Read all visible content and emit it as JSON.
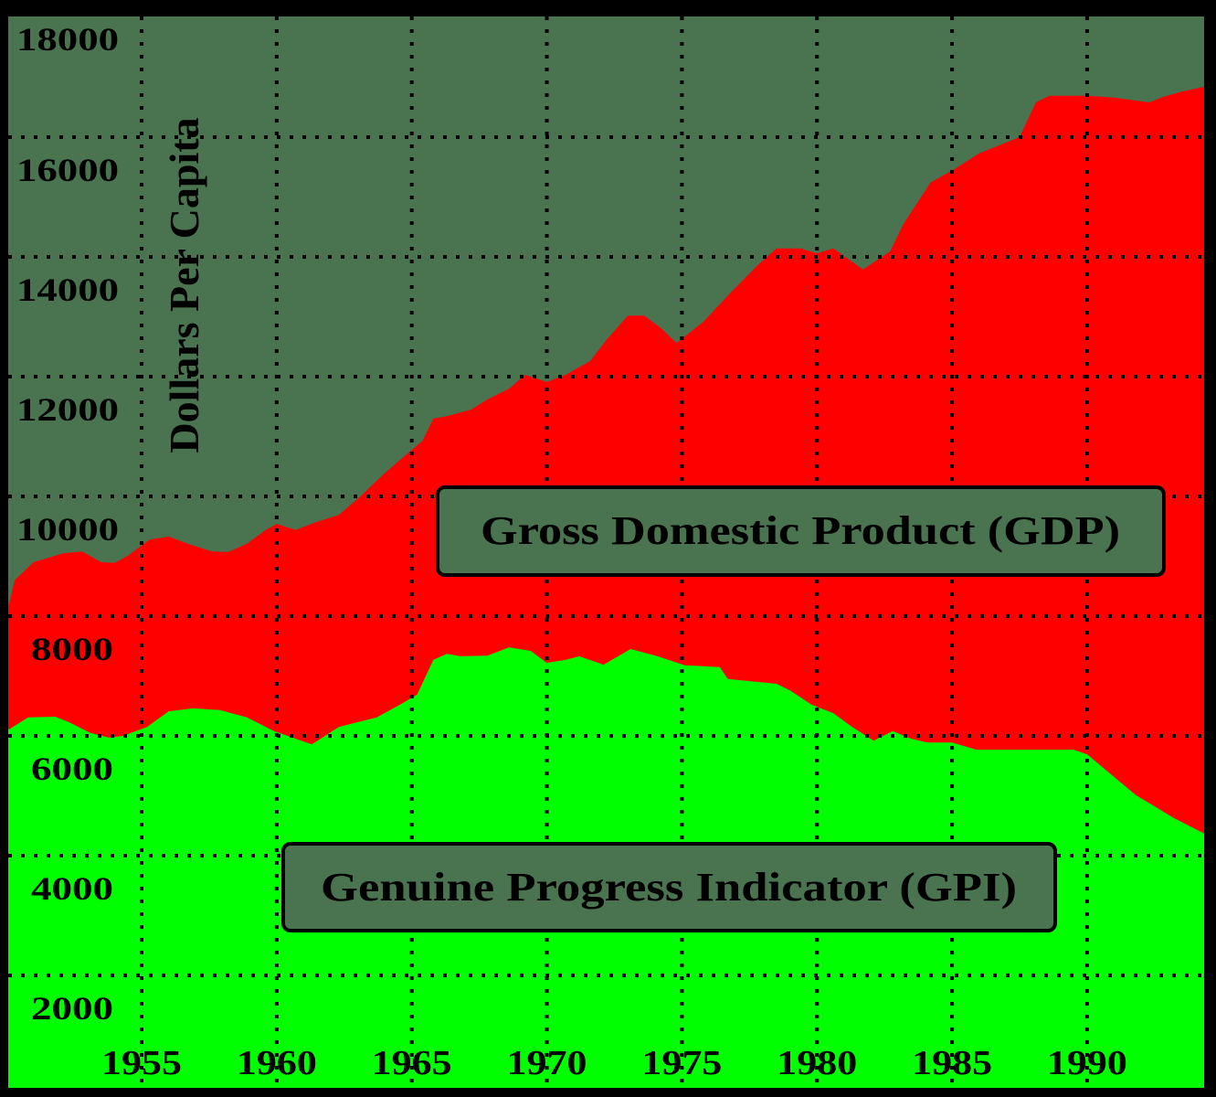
{
  "chart_data": {
    "type": "area",
    "title": "",
    "xlabel": "",
    "ylabel": "Dollars Per Capita",
    "xlim": [
      1950,
      1994.4
    ],
    "ylim": [
      0,
      18000
    ],
    "grid": true,
    "legend_position": "inline-labels",
    "x_ticks": [
      1955,
      1960,
      1965,
      1970,
      1975,
      1980,
      1985,
      1990
    ],
    "x_tick_labels": [
      "1955",
      "1960",
      "1965",
      "1970",
      "1975",
      "1980",
      "1985",
      "1990"
    ],
    "y_ticks": [
      2000,
      4000,
      6000,
      8000,
      10000,
      12000,
      14000,
      16000,
      18000
    ],
    "y_tick_labels": [
      "2000",
      "4000",
      "6000",
      "8000",
      "10000",
      "12000",
      "14000",
      "16000",
      "18000"
    ],
    "series": [
      {
        "name": "Gross Domestic Product (GDP)",
        "color": "#ff0000",
        "x": [
          1950.1,
          1950.3,
          1951.0,
          1952.1,
          1952.8,
          1953.5,
          1954.0,
          1954.5,
          1955.3,
          1956.0,
          1956.7,
          1957.6,
          1958.2,
          1958.9,
          1959.6,
          1960.0,
          1960.7,
          1961.4,
          1962.3,
          1963.1,
          1963.9,
          1964.8,
          1965.4,
          1965.8,
          1966.3,
          1967.2,
          1967.8,
          1968.6,
          1969.2,
          1970.0,
          1970.7,
          1971.6,
          1972.2,
          1973.0,
          1973.6,
          1974.2,
          1974.8,
          1975.8,
          1976.8,
          1977.8,
          1978.5,
          1979.4,
          1980.0,
          1980.6,
          1981.7,
          1982.7,
          1983.2,
          1984.2,
          1985.1,
          1986.0,
          1987.5,
          1988.1,
          1988.6,
          1990.0,
          1991.0,
          1991.8,
          1992.3,
          1992.8,
          1993.5,
          1994.4
        ],
        "values": [
          8210,
          8600,
          8900,
          9050,
          9080,
          8900,
          8890,
          9010,
          9280,
          9330,
          9210,
          9080,
          9070,
          9210,
          9440,
          9540,
          9440,
          9560,
          9690,
          10000,
          10350,
          10700,
          10930,
          11300,
          11340,
          11450,
          11620,
          11800,
          12030,
          11910,
          12030,
          12260,
          12610,
          13020,
          13020,
          12820,
          12560,
          12920,
          13400,
          13860,
          14140,
          14140,
          14060,
          14140,
          13790,
          14090,
          14550,
          15240,
          15470,
          15730,
          16000,
          16580,
          16690,
          16690,
          16660,
          16610,
          16580,
          16670,
          16760,
          16840
        ]
      },
      {
        "name": "Genuine Progress Indicator (GPI)",
        "color": "#00ff00",
        "x": [
          1950.1,
          1950.8,
          1951.8,
          1952.3,
          1953.1,
          1953.8,
          1954.3,
          1955.2,
          1956.0,
          1956.9,
          1957.9,
          1958.9,
          1959.9,
          1961.3,
          1962.3,
          1963.7,
          1964.6,
          1965.2,
          1965.8,
          1966.3,
          1966.8,
          1967.8,
          1968.6,
          1969.4,
          1970.0,
          1970.7,
          1971.2,
          1972.1,
          1973.1,
          1974.1,
          1975.1,
          1976.4,
          1976.7,
          1978.5,
          1979.0,
          1979.8,
          1980.6,
          1981.3,
          1982.1,
          1982.8,
          1983.5,
          1984.1,
          1985.0,
          1985.9,
          1989.5,
          1990.0,
          1990.8,
          1991.8,
          1993.2,
          1994.4
        ],
        "values": [
          6110,
          6310,
          6320,
          6230,
          6050,
          5970,
          6000,
          6150,
          6410,
          6460,
          6430,
          6310,
          6080,
          5860,
          6150,
          6310,
          6530,
          6690,
          7270,
          7370,
          7330,
          7340,
          7480,
          7420,
          7220,
          7270,
          7330,
          7190,
          7450,
          7330,
          7180,
          7150,
          6950,
          6870,
          6760,
          6520,
          6380,
          6150,
          5920,
          6080,
          5950,
          5890,
          5890,
          5770,
          5770,
          5690,
          5390,
          5010,
          4630,
          4370
        ]
      }
    ],
    "annotations": [
      {
        "text": "Gross Domestic Product (GDP)",
        "series": "GDP"
      },
      {
        "text": "Genuine Progress Indicator (GPI)",
        "series": "GPI"
      }
    ]
  },
  "labels": {
    "ylabel": "Dollars Per Capita",
    "gdp_box": "Gross Domestic Product (GDP)",
    "gpi_box": "Genuine Progress Indicator (GPI)"
  },
  "colors": {
    "background": "#4a7450",
    "gdp": "#ff0000",
    "gpi": "#00ff00",
    "border": "#000000"
  }
}
